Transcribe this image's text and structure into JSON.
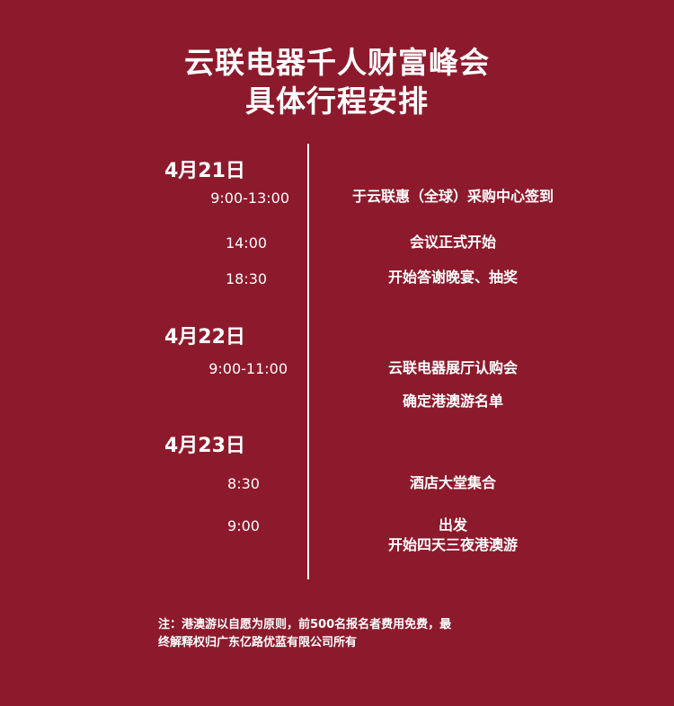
{
  "header": {
    "title_line1": "云联电器千人财富峰会",
    "title_line2": "具体行程安排"
  },
  "schedule": [
    {
      "date": "4月21日",
      "items": [
        {
          "time": "9:00-13:00",
          "event": [
            "于云联惠（全球）采购中心签到"
          ]
        },
        {
          "time": "14:00",
          "event": [
            "会议正式开始"
          ]
        },
        {
          "time": "18:30",
          "event": [
            "开始答谢晚宴、抽奖"
          ]
        }
      ]
    },
    {
      "date": "4月22日",
      "items": [
        {
          "time": "9:00-11:00",
          "event": [
            "云联电器展厅认购会"
          ]
        },
        {
          "time": "",
          "event": [
            "确定港澳游名单"
          ]
        }
      ]
    },
    {
      "date": "4月23日",
      "items": [
        {
          "time": "8:30",
          "event": [
            "酒店大堂集合"
          ]
        },
        {
          "time": "9:00",
          "event": [
            "出发",
            "开始四天三夜港澳游"
          ]
        }
      ]
    }
  ],
  "note": {
    "line1": "注：港澳游以自愿为原则，前500名报名者费用免费，最",
    "line2": "终解释权归广东亿路优蓝有限公司所有"
  },
  "colors": {
    "background": "#8d1a2c",
    "text": "#ffffff"
  }
}
